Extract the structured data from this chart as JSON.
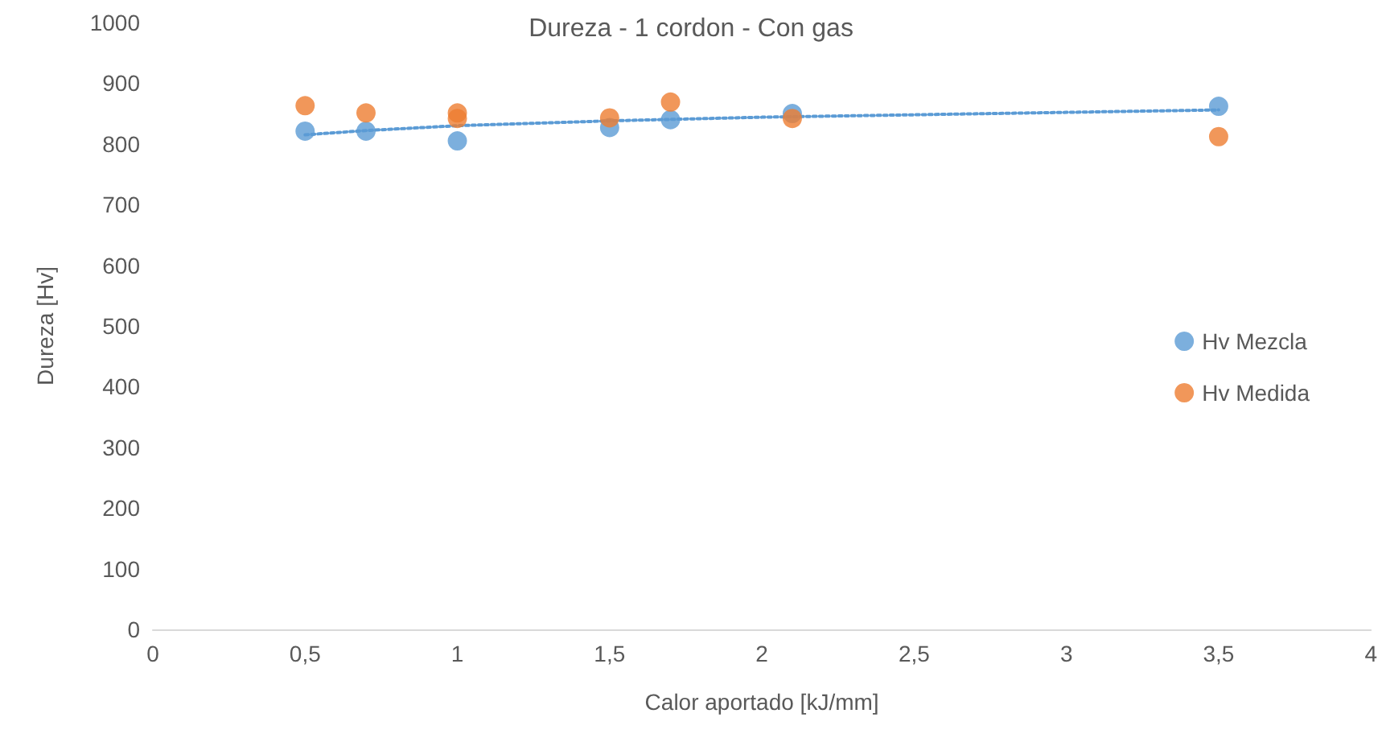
{
  "chart_data": {
    "type": "scatter",
    "title": "Dureza - 1 cordon - Con gas",
    "xlabel": "Calor aportado [kJ/mm]",
    "ylabel": "Dureza [Hv]",
    "series": [
      {
        "name": "Hv Mezcla",
        "color": "#5b9bd5",
        "x": [
          0.5,
          0.7,
          1,
          1.5,
          1.7,
          2.1,
          3.5
        ],
        "values": [
          821,
          821,
          805,
          827,
          840,
          850,
          862
        ]
      },
      {
        "name": "Hv Medida",
        "color": "#ed7d31",
        "x": [
          0.5,
          0.7,
          1,
          1,
          1.5,
          1.7,
          2.1,
          3.5
        ],
        "values": [
          863,
          851,
          851,
          842,
          843,
          869,
          842,
          812
        ]
      },
      {
        "type": "line",
        "color": "#5b9bd5",
        "line_style": "dotted",
        "marker": "none",
        "x": [
          0.5,
          0.7,
          1,
          1.5,
          2,
          2.5,
          3,
          3.5
        ],
        "values": [
          815,
          822,
          830,
          838,
          844,
          848,
          852,
          856
        ]
      }
    ],
    "marker": "circle",
    "xlim": [
      0,
      4
    ],
    "xticks": [
      0,
      {
        "value": 0.5,
        "label": "0,5"
      },
      1,
      {
        "value": 1.5,
        "label": "1,5"
      },
      2,
      {
        "value": 2.5,
        "label": "2,5"
      },
      3,
      {
        "value": 3.5,
        "label": "3,5"
      },
      4
    ],
    "ylim": [
      0,
      1000
    ],
    "yticks": [
      0,
      100,
      200,
      300,
      400,
      500,
      600,
      700,
      800,
      900,
      1000
    ],
    "grid": false,
    "legend": "right"
  }
}
